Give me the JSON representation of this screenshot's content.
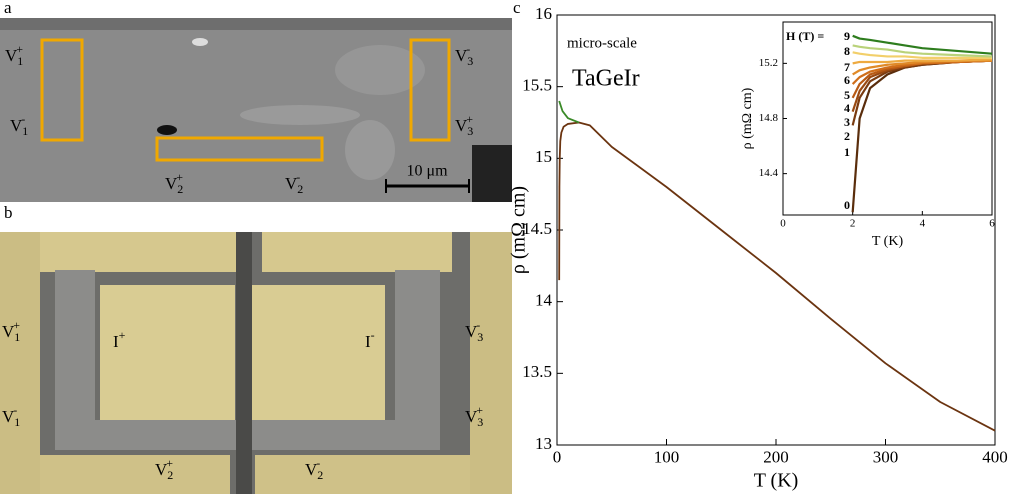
{
  "figure_labels": [
    "a",
    "b",
    "c"
  ],
  "panel_a": {
    "labels": [
      {
        "base": "V",
        "sub": "1",
        "sup": "+"
      },
      {
        "base": "V",
        "sub": "1",
        "sup": "-"
      },
      {
        "base": "V",
        "sub": "2",
        "sup": "+"
      },
      {
        "base": "V",
        "sub": "2",
        "sup": "-"
      },
      {
        "base": "V",
        "sub": "3",
        "sup": "-"
      },
      {
        "base": "V",
        "sub": "3",
        "sup": "+"
      }
    ],
    "scale_bar": "10 μm"
  },
  "panel_b": {
    "labels": [
      {
        "base": "V",
        "sub": "1",
        "sup": "+"
      },
      {
        "base": "V",
        "sub": "1",
        "sup": "-"
      },
      {
        "base": "V",
        "sub": "2",
        "sup": "+"
      },
      {
        "base": "V",
        "sub": "2",
        "sup": "-"
      },
      {
        "base": "V",
        "sub": "3",
        "sup": "-"
      },
      {
        "base": "V",
        "sub": "3",
        "sup": "+"
      },
      {
        "base": "I",
        "sup": "+"
      },
      {
        "base": "I",
        "sup": "-"
      }
    ]
  },
  "chart_data": [
    {
      "type": "line",
      "x_label": "T (K)",
      "y_label": "ρ (mΩ cm)",
      "annotations": [
        "micro-scale",
        "TaGeIr"
      ],
      "xlim": [
        0,
        400
      ],
      "xticks": [
        0,
        100,
        200,
        300,
        400
      ],
      "ylim": [
        13,
        16
      ],
      "yticks": [
        13,
        13.5,
        14,
        14.5,
        15,
        15.5,
        16
      ],
      "series": [
        {
          "color": "#6b3410",
          "x": [
            2,
            2.2,
            2.5,
            3,
            4,
            6,
            10,
            20,
            30,
            50,
            100,
            150,
            200,
            250,
            300,
            350,
            400
          ],
          "values": [
            14.15,
            14.8,
            15.0,
            15.12,
            15.18,
            15.22,
            15.24,
            15.25,
            15.23,
            15.08,
            14.8,
            14.5,
            14.2,
            13.88,
            13.57,
            13.3,
            13.1
          ]
        },
        {
          "color": "#3a8a28",
          "x": [
            2,
            5,
            10,
            20
          ],
          "values": [
            15.4,
            15.33,
            15.28,
            15.25
          ]
        }
      ]
    },
    {
      "type": "line",
      "x_label": "T (K)",
      "y_label": "ρ (mΩ cm)",
      "annotations": [
        "H (T) ="
      ],
      "xlim": [
        0,
        6
      ],
      "xticks": [
        0,
        2,
        4,
        6
      ],
      "ylim": [
        14.1,
        15.5
      ],
      "yticks": [
        14.4,
        14.8,
        15.2
      ],
      "series": [
        {
          "name": "0",
          "color": "#5a2d0c",
          "x": [
            2,
            2.2,
            2.5,
            3,
            3.5,
            4,
            5,
            6
          ],
          "values": [
            14.12,
            14.8,
            15.02,
            15.12,
            15.17,
            15.19,
            15.21,
            15.22
          ]
        },
        {
          "name": "1",
          "color": "#7a3b10",
          "x": [
            2,
            2.2,
            2.5,
            3,
            3.5,
            4,
            5,
            6
          ],
          "values": [
            14.75,
            14.95,
            15.07,
            15.14,
            15.17,
            15.19,
            15.21,
            15.22
          ]
        },
        {
          "name": "2",
          "color": "#9a4a12",
          "x": [
            2,
            2.2,
            2.5,
            3,
            3.5,
            4,
            5,
            6
          ],
          "values": [
            14.85,
            15.0,
            15.1,
            15.15,
            15.18,
            15.2,
            15.21,
            15.22
          ]
        },
        {
          "name": "3",
          "color": "#b85a14",
          "x": [
            2,
            2.2,
            2.5,
            3,
            3.5,
            4,
            5,
            6
          ],
          "values": [
            14.95,
            15.05,
            15.12,
            15.16,
            15.18,
            15.2,
            15.21,
            15.22
          ]
        },
        {
          "name": "4",
          "color": "#d06e1a",
          "x": [
            2,
            2.2,
            2.5,
            3,
            3.5,
            4,
            5,
            6
          ],
          "values": [
            15.05,
            15.1,
            15.14,
            15.17,
            15.19,
            15.2,
            15.21,
            15.22
          ]
        },
        {
          "name": "5",
          "color": "#e08a28",
          "x": [
            2,
            2.2,
            2.5,
            3,
            3.5,
            4,
            5,
            6
          ],
          "values": [
            15.12,
            15.15,
            15.17,
            15.19,
            15.2,
            15.21,
            15.22,
            15.22
          ]
        },
        {
          "name": "6",
          "color": "#eeaa40",
          "x": [
            2,
            2.2,
            2.5,
            3,
            3.5,
            4,
            5,
            6
          ],
          "values": [
            15.2,
            15.21,
            15.21,
            15.21,
            15.22,
            15.22,
            15.22,
            15.23
          ]
        },
        {
          "name": "7",
          "color": "#f2cf6a",
          "x": [
            2,
            2.2,
            2.5,
            3,
            3.5,
            4,
            5,
            6
          ],
          "values": [
            15.28,
            15.27,
            15.26,
            15.25,
            15.25,
            15.24,
            15.24,
            15.24
          ]
        },
        {
          "name": "8",
          "color": "#b9d27a",
          "x": [
            2,
            2.2,
            2.5,
            3,
            3.5,
            4,
            5,
            6
          ],
          "values": [
            15.33,
            15.32,
            15.31,
            15.3,
            15.28,
            15.27,
            15.26,
            15.25
          ]
        },
        {
          "name": "9",
          "color": "#2e7d1e",
          "x": [
            2,
            2.2,
            2.5,
            3,
            3.5,
            4,
            5,
            6
          ],
          "values": [
            15.4,
            15.38,
            15.37,
            15.35,
            15.33,
            15.31,
            15.29,
            15.27
          ]
        }
      ]
    }
  ]
}
